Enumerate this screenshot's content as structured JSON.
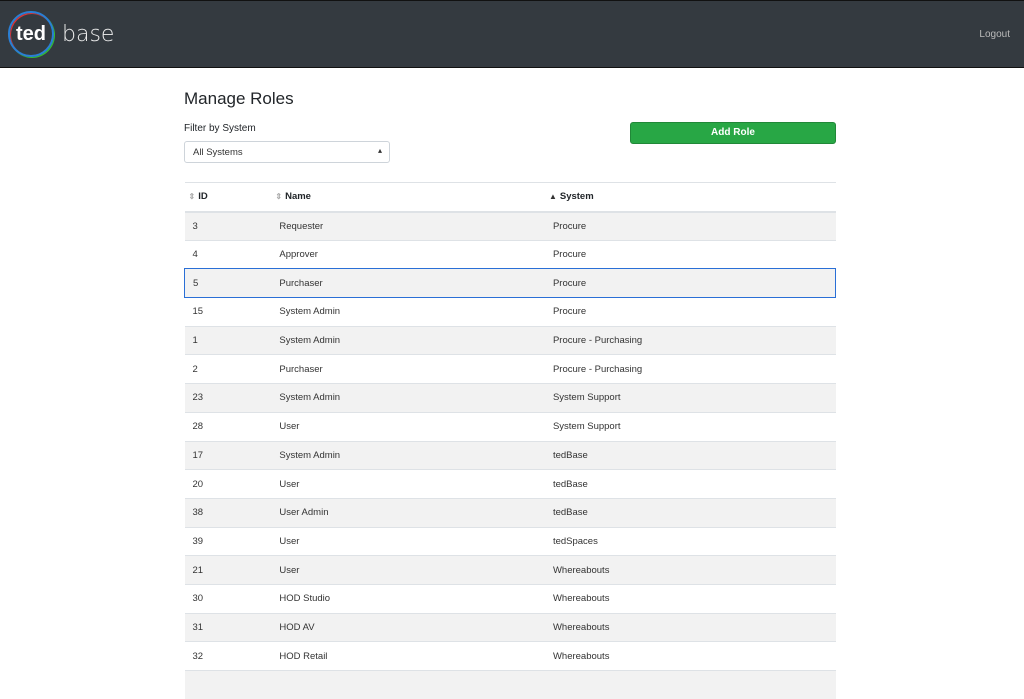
{
  "header": {
    "logo_mark": "ted",
    "logo_text": "base",
    "logout": "Logout"
  },
  "page": {
    "title": "Manage Roles",
    "filter_label": "Filter by System",
    "filter_value": "All Systems",
    "add_role": "Add Role"
  },
  "table": {
    "columns": [
      {
        "label": "ID",
        "sort": "none"
      },
      {
        "label": "Name",
        "sort": "none"
      },
      {
        "label": "System",
        "sort": "ascending"
      }
    ],
    "selected_row_id": "5",
    "rows": [
      [
        "3",
        "Requester",
        "Procure"
      ],
      [
        "4",
        "Approver",
        "Procure"
      ],
      [
        "5",
        "Purchaser",
        "Procure"
      ],
      [
        "15",
        "System Admin",
        "Procure"
      ],
      [
        "1",
        "System Admin",
        "Procure - Purchasing"
      ],
      [
        "2",
        "Purchaser",
        "Procure - Purchasing"
      ],
      [
        "23",
        "System Admin",
        "System Support"
      ],
      [
        "28",
        "User",
        "System Support"
      ],
      [
        "17",
        "System Admin",
        "tedBase"
      ],
      [
        "20",
        "User",
        "tedBase"
      ],
      [
        "38",
        "User Admin",
        "tedBase"
      ],
      [
        "39",
        "User",
        "tedSpaces"
      ],
      [
        "21",
        "User",
        "Whereabouts"
      ],
      [
        "30",
        "HOD Studio",
        "Whereabouts"
      ],
      [
        "31",
        "HOD AV",
        "Whereabouts"
      ],
      [
        "32",
        "HOD Retail",
        "Whereabouts"
      ],
      [
        "",
        "",
        ""
      ]
    ]
  }
}
